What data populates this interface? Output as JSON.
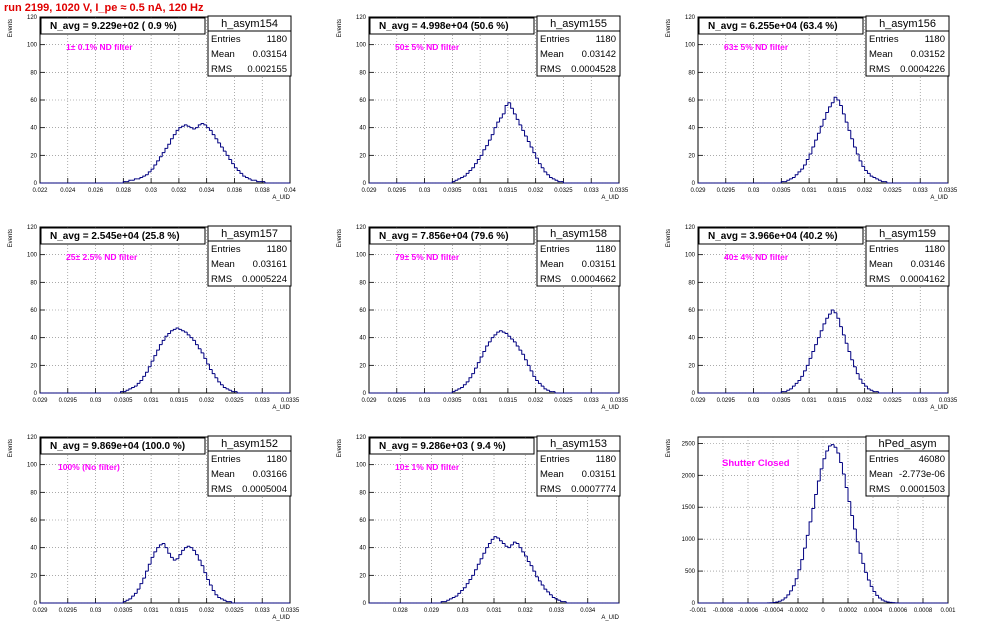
{
  "page": {
    "title": "run 2199,  1020 V, I_pe ≈ 0.5 nA, 120 Hz"
  },
  "chart_data": [
    {
      "type": "histogram",
      "name": "h_asym154",
      "nav_label": "N_avg = 9.229e+02 ( 0.9 %)",
      "filter_label": "1± 0.1% ND filter",
      "stats": {
        "Entries": "1180",
        "Mean": "0.03154",
        "RMS": "0.002155"
      },
      "ylabel": "Events",
      "xlabel": "A_UID",
      "xlim": [
        0.022,
        0.04
      ],
      "ylim": [
        0,
        120
      ],
      "xticks": [
        "0.022",
        "0.024",
        "0.026",
        "0.028",
        "0.03",
        "0.032",
        "0.034",
        "0.036",
        "0.038",
        "0.04"
      ],
      "yticks": [
        "0",
        "20",
        "40",
        "60",
        "80",
        "100",
        "120"
      ],
      "counts": [
        0,
        0,
        0,
        0,
        0,
        0,
        0,
        0,
        0,
        0,
        0,
        0,
        0,
        0,
        0,
        0,
        0,
        0,
        0,
        0,
        0,
        0,
        0,
        0,
        0,
        0,
        0,
        0,
        0,
        0,
        1,
        1,
        2,
        2,
        3,
        3,
        4,
        5,
        6,
        8,
        10,
        13,
        16,
        19,
        22,
        25,
        28,
        32,
        35,
        38,
        40,
        41,
        42,
        41,
        40,
        39,
        40,
        42,
        43,
        42,
        40,
        38,
        35,
        32,
        29,
        26,
        23,
        20,
        17,
        14,
        11,
        9,
        7,
        5,
        4,
        3,
        2,
        2,
        1,
        1,
        1,
        0,
        0,
        0,
        0,
        0,
        0,
        0,
        0,
        0
      ]
    },
    {
      "type": "histogram",
      "name": "h_asym155",
      "nav_label": "N_avg = 4.998e+04 (50.6 %)",
      "filter_label": "50± 5% ND filter",
      "stats": {
        "Entries": "1180",
        "Mean": "0.03142",
        "RMS": "0.0004528"
      },
      "ylabel": "Events",
      "xlabel": "A_UID",
      "xlim": [
        0.029,
        0.0335
      ],
      "ylim": [
        0,
        120
      ],
      "xticks": [
        "0.029",
        "0.0295",
        "0.03",
        "0.0305",
        "0.031",
        "0.0315",
        "0.032",
        "0.0325",
        "0.033",
        "0.0335"
      ],
      "yticks": [
        "0",
        "20",
        "40",
        "60",
        "80",
        "100",
        "120"
      ],
      "counts": [
        0,
        0,
        0,
        0,
        0,
        0,
        0,
        0,
        0,
        0,
        0,
        0,
        0,
        0,
        0,
        0,
        0,
        0,
        0,
        0,
        0,
        0,
        0,
        0,
        0,
        0,
        0,
        0,
        0,
        0,
        1,
        2,
        3,
        4,
        5,
        7,
        9,
        11,
        14,
        17,
        20,
        24,
        27,
        31,
        35,
        40,
        44,
        47,
        50,
        56,
        58,
        54,
        50,
        46,
        42,
        38,
        34,
        30,
        26,
        22,
        18,
        14,
        11,
        8,
        6,
        4,
        3,
        2,
        1,
        1,
        0,
        0,
        0,
        0,
        0,
        0,
        0,
        0,
        0,
        0,
        0,
        0,
        0,
        0,
        0,
        0,
        0,
        0,
        0,
        0
      ]
    },
    {
      "type": "histogram",
      "name": "h_asym156",
      "nav_label": "N_avg = 6.255e+04 (63.4 %)",
      "filter_label": "63± 5% ND filter",
      "stats": {
        "Entries": "1180",
        "Mean": "0.03152",
        "RMS": "0.0004226"
      },
      "ylabel": "Events",
      "xlabel": "A_UID",
      "xlim": [
        0.029,
        0.0335
      ],
      "ylim": [
        0,
        120
      ],
      "xticks": [
        "0.029",
        "0.0295",
        "0.03",
        "0.0305",
        "0.031",
        "0.0315",
        "0.032",
        "0.0325",
        "0.033",
        "0.0335"
      ],
      "yticks": [
        "0",
        "20",
        "40",
        "60",
        "80",
        "100",
        "120"
      ],
      "counts": [
        0,
        0,
        0,
        0,
        0,
        0,
        0,
        0,
        0,
        0,
        0,
        0,
        0,
        0,
        0,
        0,
        0,
        0,
        0,
        0,
        0,
        0,
        0,
        0,
        0,
        0,
        0,
        0,
        0,
        0,
        1,
        1,
        2,
        3,
        4,
        6,
        8,
        10,
        13,
        17,
        21,
        26,
        31,
        36,
        41,
        46,
        51,
        55,
        58,
        62,
        60,
        56,
        50,
        44,
        38,
        32,
        26,
        21,
        16,
        12,
        9,
        7,
        5,
        4,
        3,
        2,
        1,
        1,
        0,
        0,
        0,
        0,
        0,
        0,
        0,
        0,
        0,
        0,
        0,
        0,
        0,
        0,
        0,
        0,
        0,
        0,
        0,
        0,
        0,
        0
      ]
    },
    {
      "type": "histogram",
      "name": "h_asym157",
      "nav_label": "N_avg = 2.545e+04 (25.8 %)",
      "filter_label": "25± 2.5% ND filter",
      "stats": {
        "Entries": "1180",
        "Mean": "0.03161",
        "RMS": "0.0005224"
      },
      "ylabel": "Events",
      "xlabel": "A_UID",
      "xlim": [
        0.029,
        0.0335
      ],
      "ylim": [
        0,
        120
      ],
      "xticks": [
        "0.029",
        "0.0295",
        "0.03",
        "0.0305",
        "0.031",
        "0.0315",
        "0.032",
        "0.0325",
        "0.033",
        "0.0335"
      ],
      "yticks": [
        "0",
        "20",
        "40",
        "60",
        "80",
        "100",
        "120"
      ],
      "counts": [
        0,
        0,
        0,
        0,
        0,
        0,
        0,
        0,
        0,
        0,
        0,
        0,
        0,
        0,
        0,
        0,
        0,
        0,
        0,
        0,
        0,
        0,
        0,
        0,
        0,
        0,
        0,
        0,
        0,
        1,
        1,
        2,
        3,
        4,
        5,
        7,
        9,
        12,
        15,
        19,
        23,
        27,
        31,
        35,
        38,
        41,
        43,
        45,
        46,
        47,
        46,
        45,
        44,
        42,
        40,
        38,
        35,
        32,
        29,
        25,
        21,
        17,
        14,
        11,
        8,
        6,
        4,
        3,
        2,
        1,
        1,
        0,
        0,
        0,
        0,
        0,
        0,
        0,
        0,
        0,
        0,
        0,
        0,
        0,
        0,
        0,
        0,
        0,
        0,
        0
      ]
    },
    {
      "type": "histogram",
      "name": "h_asym158",
      "nav_label": "N_avg = 7.856e+04 (79.6 %)",
      "filter_label": "79± 5% ND filter",
      "stats": {
        "Entries": "1180",
        "Mean": "0.03151",
        "RMS": "0.0004662"
      },
      "ylabel": "Events",
      "xlabel": "A_UID",
      "xlim": [
        0.029,
        0.0335
      ],
      "ylim": [
        0,
        120
      ],
      "xticks": [
        "0.029",
        "0.0295",
        "0.03",
        "0.0305",
        "0.031",
        "0.0315",
        "0.032",
        "0.0325",
        "0.033",
        "0.0335"
      ],
      "yticks": [
        "0",
        "20",
        "40",
        "60",
        "80",
        "100",
        "120"
      ],
      "counts": [
        0,
        0,
        0,
        0,
        0,
        0,
        0,
        0,
        0,
        0,
        0,
        0,
        0,
        0,
        0,
        0,
        0,
        0,
        0,
        0,
        0,
        0,
        0,
        0,
        0,
        0,
        0,
        0,
        0,
        0,
        1,
        2,
        3,
        4,
        6,
        8,
        11,
        14,
        18,
        22,
        26,
        30,
        34,
        37,
        40,
        42,
        44,
        45,
        44,
        43,
        41,
        39,
        37,
        34,
        31,
        28,
        24,
        20,
        16,
        12,
        9,
        7,
        5,
        3,
        2,
        1,
        1,
        0,
        0,
        0,
        0,
        0,
        0,
        0,
        0,
        0,
        0,
        0,
        0,
        0,
        0,
        0,
        0,
        0,
        0,
        0,
        0,
        0,
        0,
        0
      ]
    },
    {
      "type": "histogram",
      "name": "h_asym159",
      "nav_label": "N_avg = 3.966e+04 (40.2 %)",
      "filter_label": "40± 4% ND filter",
      "stats": {
        "Entries": "1180",
        "Mean": "0.03146",
        "RMS": "0.0004162"
      },
      "ylabel": "Events",
      "xlabel": "A_UID",
      "xlim": [
        0.029,
        0.0335
      ],
      "ylim": [
        0,
        120
      ],
      "xticks": [
        "0.029",
        "0.0295",
        "0.03",
        "0.0305",
        "0.031",
        "0.0315",
        "0.032",
        "0.0325",
        "0.033",
        "0.0335"
      ],
      "yticks": [
        "0",
        "20",
        "40",
        "60",
        "80",
        "100",
        "120"
      ],
      "counts": [
        0,
        0,
        0,
        0,
        0,
        0,
        0,
        0,
        0,
        0,
        0,
        0,
        0,
        0,
        0,
        0,
        0,
        0,
        0,
        0,
        0,
        0,
        0,
        0,
        0,
        0,
        0,
        0,
        0,
        0,
        1,
        1,
        2,
        3,
        5,
        7,
        9,
        12,
        16,
        20,
        25,
        30,
        35,
        40,
        45,
        50,
        54,
        57,
        60,
        58,
        54,
        48,
        42,
        36,
        30,
        24,
        19,
        14,
        10,
        7,
        5,
        3,
        2,
        1,
        1,
        0,
        0,
        0,
        0,
        0,
        0,
        0,
        0,
        0,
        0,
        0,
        0,
        0,
        0,
        0,
        0,
        0,
        0,
        0,
        0,
        0,
        0,
        0,
        0,
        0
      ]
    },
    {
      "type": "histogram",
      "name": "h_asym152",
      "nav_label": "N_avg = 9.869e+04 (100.0 %)",
      "filter_label": "100% (No filter)",
      "stats": {
        "Entries": "1180",
        "Mean": "0.03166",
        "RMS": "0.0005004"
      },
      "ylabel": "Events",
      "xlabel": "A_UID",
      "xlim": [
        0.029,
        0.0335
      ],
      "ylim": [
        0,
        120
      ],
      "xticks": [
        "0.029",
        "0.0295",
        "0.03",
        "0.0305",
        "0.031",
        "0.0315",
        "0.032",
        "0.0325",
        "0.033",
        "0.0335"
      ],
      "yticks": [
        "0",
        "20",
        "40",
        "60",
        "80",
        "100",
        "120"
      ],
      "counts": [
        0,
        0,
        0,
        0,
        0,
        0,
        0,
        0,
        0,
        0,
        0,
        0,
        0,
        0,
        0,
        0,
        0,
        0,
        0,
        0,
        0,
        0,
        0,
        0,
        0,
        0,
        0,
        0,
        0,
        0,
        1,
        2,
        3,
        5,
        7,
        10,
        14,
        18,
        23,
        28,
        33,
        37,
        40,
        42,
        43,
        40,
        36,
        33,
        31,
        32,
        35,
        38,
        40,
        41,
        40,
        38,
        35,
        31,
        27,
        22,
        17,
        13,
        9,
        6,
        4,
        3,
        2,
        1,
        1,
        0,
        0,
        0,
        0,
        0,
        0,
        0,
        0,
        0,
        0,
        0,
        0,
        0,
        0,
        0,
        0,
        0,
        0,
        0,
        0,
        0
      ]
    },
    {
      "type": "histogram",
      "name": "h_asym153",
      "nav_label": "N_avg = 9.286e+03 ( 9.4 %)",
      "filter_label": "10± 1% ND filter",
      "stats": {
        "Entries": "1180",
        "Mean": "0.03151",
        "RMS": "0.0007774"
      },
      "ylabel": "Events",
      "xlabel": "A_UID",
      "xlim": [
        0.027,
        0.035
      ],
      "ylim": [
        0,
        120
      ],
      "xticks": [
        "0.028",
        "0.029",
        "0.03",
        "0.031",
        "0.032",
        "0.033",
        "0.034"
      ],
      "yticks": [
        "0",
        "20",
        "40",
        "60",
        "80",
        "100",
        "120"
      ],
      "counts": [
        0,
        0,
        0,
        0,
        0,
        0,
        0,
        0,
        0,
        0,
        0,
        0,
        0,
        0,
        0,
        0,
        0,
        0,
        0,
        0,
        0,
        0,
        0,
        0,
        0,
        0,
        1,
        1,
        2,
        3,
        4,
        5,
        7,
        9,
        11,
        14,
        17,
        20,
        24,
        28,
        32,
        36,
        40,
        43,
        46,
        48,
        47,
        45,
        43,
        41,
        40,
        42,
        44,
        43,
        40,
        37,
        34,
        30,
        27,
        23,
        19,
        16,
        13,
        10,
        8,
        6,
        4,
        3,
        2,
        1,
        1,
        0,
        0,
        0,
        0,
        0,
        0,
        0,
        0,
        0,
        0,
        0,
        0,
        0,
        0,
        0,
        0,
        0,
        0,
        0
      ]
    },
    {
      "type": "histogram",
      "name": "hPed_asym",
      "nav_label": "",
      "filter_label": "Shutter Closed",
      "stats": {
        "Entries": "46080",
        "Mean": "-2.773e-06",
        "RMS": "0.0001503"
      },
      "ylabel": "Events",
      "xlabel": "",
      "xlim": [
        -0.001,
        0.001
      ],
      "ylim": [
        0,
        2600
      ],
      "xticks": [
        "-0.001",
        "-0.0008",
        "-0.0006",
        "-0.0004",
        "-0.0002",
        "0",
        "0.0002",
        "0.0004",
        "0.0006",
        "0.0008",
        "0.001"
      ],
      "yticks": [
        "0",
        "500",
        "1000",
        "1500",
        "2000",
        "2500"
      ],
      "counts": [
        0,
        0,
        0,
        0,
        0,
        0,
        0,
        0,
        0,
        0,
        0,
        0,
        0,
        0,
        0,
        0,
        0,
        0,
        0,
        0,
        0,
        0,
        0,
        0,
        1,
        2,
        4,
        8,
        15,
        28,
        48,
        80,
        128,
        190,
        270,
        380,
        520,
        680,
        860,
        1060,
        1270,
        1480,
        1700,
        1910,
        2100,
        2260,
        2380,
        2460,
        2480,
        2440,
        2350,
        2200,
        2020,
        1810,
        1590,
        1370,
        1160,
        960,
        780,
        620,
        480,
        360,
        260,
        180,
        120,
        78,
        48,
        28,
        16,
        9,
        5,
        2,
        1,
        0,
        0,
        0,
        0,
        0,
        0,
        0,
        0,
        0,
        0,
        0,
        0,
        0,
        0,
        0,
        0,
        0
      ]
    }
  ]
}
